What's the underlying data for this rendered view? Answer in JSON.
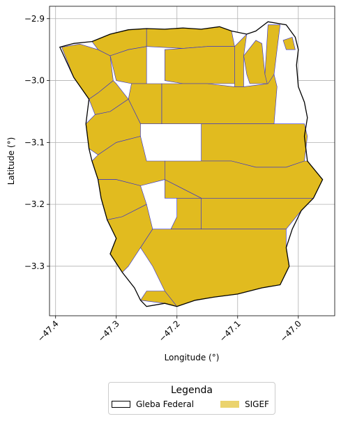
{
  "chart_data": {
    "type": "map",
    "xlabel": "Longitude (°)",
    "ylabel": "Latitude (°)",
    "xlim": [
      -47.41,
      -46.94
    ],
    "ylim": [
      -3.38,
      -2.88
    ],
    "xticks": [
      -47.4,
      -47.3,
      -47.2,
      -47.1,
      -47.0
    ],
    "xtick_labels": [
      "−47.4",
      "−47.3",
      "−47.2",
      "−47.1",
      "−47.0"
    ],
    "yticks": [
      -2.9,
      -3.0,
      -3.1,
      -3.2,
      -3.3
    ],
    "ytick_labels": [
      "−2.9",
      "−3.0",
      "−3.1",
      "−3.2",
      "−3.3"
    ],
    "grid": true,
    "colors": {
      "gleba_edge": "#000000",
      "gleba_fill": "#ffffff",
      "sigef_fill": "#e1bb1f",
      "sigef_edge": "#2b2bd6",
      "grid": "#b0b0b0"
    },
    "gleba_boundary": [
      [
        -47.393,
        -2.946
      ],
      [
        -47.37,
        -2.94
      ],
      [
        -47.34,
        -2.937
      ],
      [
        -47.31,
        -2.925
      ],
      [
        -47.28,
        -2.918
      ],
      [
        -47.25,
        -2.916
      ],
      [
        -47.22,
        -2.917
      ],
      [
        -47.19,
        -2.915
      ],
      [
        -47.16,
        -2.917
      ],
      [
        -47.13,
        -2.913
      ],
      [
        -47.11,
        -2.92
      ],
      [
        -47.085,
        -2.925
      ],
      [
        -47.07,
        -2.92
      ],
      [
        -47.05,
        -2.905
      ],
      [
        -47.02,
        -2.91
      ],
      [
        -47.005,
        -2.93
      ],
      [
        -47.0,
        -2.95
      ],
      [
        -47.003,
        -2.975
      ],
      [
        -47.0,
        -3.01
      ],
      [
        -46.99,
        -3.035
      ],
      [
        -46.985,
        -3.06
      ],
      [
        -46.99,
        -3.09
      ],
      [
        -46.985,
        -3.13
      ],
      [
        -46.96,
        -3.16
      ],
      [
        -46.975,
        -3.19
      ],
      [
        -46.995,
        -3.21
      ],
      [
        -47.01,
        -3.24
      ],
      [
        -47.02,
        -3.27
      ],
      [
        -47.015,
        -3.3
      ],
      [
        -47.03,
        -3.33
      ],
      [
        -47.06,
        -3.335
      ],
      [
        -47.1,
        -3.345
      ],
      [
        -47.14,
        -3.35
      ],
      [
        -47.17,
        -3.355
      ],
      [
        -47.2,
        -3.365
      ],
      [
        -47.22,
        -3.36
      ],
      [
        -47.25,
        -3.365
      ],
      [
        -47.26,
        -3.355
      ],
      [
        -47.27,
        -3.335
      ],
      [
        -47.29,
        -3.31
      ],
      [
        -47.31,
        -3.28
      ],
      [
        -47.3,
        -3.255
      ],
      [
        -47.315,
        -3.225
      ],
      [
        -47.325,
        -3.19
      ],
      [
        -47.33,
        -3.16
      ],
      [
        -47.34,
        -3.13
      ],
      [
        -47.345,
        -3.11
      ],
      [
        -47.35,
        -3.07
      ],
      [
        -47.345,
        -3.03
      ],
      [
        -47.37,
        -2.995
      ],
      [
        -47.393,
        -2.946
      ]
    ],
    "sigef_parcels": [
      [
        [
          -47.39,
          -2.946
        ],
        [
          -47.36,
          -2.941
        ],
        [
          -47.33,
          -2.95
        ],
        [
          -47.31,
          -2.96
        ],
        [
          -47.305,
          -3.0
        ],
        [
          -47.33,
          -3.02
        ],
        [
          -47.345,
          -3.03
        ],
        [
          -47.37,
          -2.995
        ]
      ],
      [
        [
          -47.34,
          -2.937
        ],
        [
          -47.31,
          -2.925
        ],
        [
          -47.28,
          -2.918
        ],
        [
          -47.25,
          -2.916
        ],
        [
          -47.25,
          -2.945
        ],
        [
          -47.28,
          -2.95
        ],
        [
          -47.31,
          -2.96
        ],
        [
          -47.33,
          -2.95
        ]
      ],
      [
        [
          -47.25,
          -2.916
        ],
        [
          -47.22,
          -2.917
        ],
        [
          -47.19,
          -2.915
        ],
        [
          -47.16,
          -2.917
        ],
        [
          -47.13,
          -2.913
        ],
        [
          -47.11,
          -2.92
        ],
        [
          -47.105,
          -2.945
        ],
        [
          -47.15,
          -2.945
        ],
        [
          -47.19,
          -2.948
        ],
        [
          -47.25,
          -2.945
        ]
      ],
      [
        [
          -47.31,
          -2.96
        ],
        [
          -47.28,
          -2.95
        ],
        [
          -47.25,
          -2.945
        ],
        [
          -47.25,
          -3.005
        ],
        [
          -47.275,
          -3.005
        ],
        [
          -47.3,
          -3.0
        ]
      ],
      [
        [
          -47.19,
          -2.948
        ],
        [
          -47.15,
          -2.945
        ],
        [
          -47.105,
          -2.945
        ],
        [
          -47.105,
          -3.005
        ],
        [
          -47.15,
          -3.005
        ],
        [
          -47.19,
          -3.005
        ],
        [
          -47.22,
          -3.0
        ],
        [
          -47.22,
          -2.95
        ]
      ],
      [
        [
          -47.105,
          -2.945
        ],
        [
          -47.085,
          -2.925
        ],
        [
          -47.09,
          -2.96
        ],
        [
          -47.09,
          -3.01
        ],
        [
          -47.105,
          -3.01
        ]
      ],
      [
        [
          -47.07,
          -2.935
        ],
        [
          -47.06,
          -2.94
        ],
        [
          -47.055,
          -2.99
        ],
        [
          -47.05,
          -3.005
        ],
        [
          -47.08,
          -3.005
        ],
        [
          -47.085,
          -2.99
        ],
        [
          -47.09,
          -2.96
        ]
      ],
      [
        [
          -47.055,
          -2.99
        ],
        [
          -47.05,
          -2.91
        ],
        [
          -47.03,
          -2.91
        ],
        [
          -47.035,
          -2.95
        ],
        [
          -47.04,
          -2.99
        ],
        [
          -47.05,
          -3.01
        ]
      ],
      [
        [
          -47.025,
          -2.935
        ],
        [
          -47.01,
          -2.93
        ],
        [
          -47.005,
          -2.95
        ],
        [
          -47.02,
          -2.95
        ]
      ],
      [
        [
          -47.345,
          -3.03
        ],
        [
          -47.33,
          -3.02
        ],
        [
          -47.305,
          -3.0
        ],
        [
          -47.3,
          -3.005
        ],
        [
          -47.28,
          -3.03
        ],
        [
          -47.31,
          -3.05
        ],
        [
          -47.335,
          -3.055
        ]
      ],
      [
        [
          -47.28,
          -3.03
        ],
        [
          -47.275,
          -3.005
        ],
        [
          -47.25,
          -3.005
        ],
        [
          -47.225,
          -3.005
        ],
        [
          -47.225,
          -3.07
        ],
        [
          -47.26,
          -3.07
        ],
        [
          -47.27,
          -3.05
        ]
      ],
      [
        [
          -47.225,
          -3.005
        ],
        [
          -47.19,
          -3.005
        ],
        [
          -47.15,
          -3.005
        ],
        [
          -47.105,
          -3.01
        ],
        [
          -47.09,
          -3.01
        ],
        [
          -47.05,
          -3.005
        ],
        [
          -47.04,
          -2.99
        ],
        [
          -47.035,
          -3.01
        ],
        [
          -47.04,
          -3.07
        ],
        [
          -47.1,
          -3.07
        ],
        [
          -47.16,
          -3.07
        ],
        [
          -47.225,
          -3.07
        ]
      ],
      [
        [
          -47.345,
          -3.11
        ],
        [
          -47.35,
          -3.07
        ],
        [
          -47.335,
          -3.055
        ],
        [
          -47.31,
          -3.05
        ],
        [
          -47.28,
          -3.03
        ],
        [
          -47.27,
          -3.05
        ],
        [
          -47.26,
          -3.07
        ],
        [
          -47.26,
          -3.09
        ],
        [
          -47.3,
          -3.1
        ],
        [
          -47.33,
          -3.12
        ]
      ],
      [
        [
          -47.16,
          -3.07
        ],
        [
          -47.1,
          -3.07
        ],
        [
          -47.04,
          -3.07
        ],
        [
          -46.99,
          -3.07
        ],
        [
          -46.985,
          -3.09
        ],
        [
          -46.99,
          -3.13
        ],
        [
          -47.02,
          -3.14
        ],
        [
          -47.07,
          -3.14
        ],
        [
          -47.11,
          -3.13
        ],
        [
          -47.16,
          -3.13
        ]
      ],
      [
        [
          -47.34,
          -3.13
        ],
        [
          -47.33,
          -3.12
        ],
        [
          -47.3,
          -3.1
        ],
        [
          -47.26,
          -3.09
        ],
        [
          -47.25,
          -3.13
        ],
        [
          -47.22,
          -3.13
        ],
        [
          -47.22,
          -3.16
        ],
        [
          -47.26,
          -3.17
        ],
        [
          -47.3,
          -3.16
        ],
        [
          -47.33,
          -3.16
        ]
      ],
      [
        [
          -47.22,
          -3.13
        ],
        [
          -47.16,
          -3.13
        ],
        [
          -47.11,
          -3.13
        ],
        [
          -47.07,
          -3.14
        ],
        [
          -47.02,
          -3.14
        ],
        [
          -46.99,
          -3.13
        ],
        [
          -46.985,
          -3.13
        ],
        [
          -46.96,
          -3.16
        ],
        [
          -46.975,
          -3.19
        ],
        [
          -47.02,
          -3.19
        ],
        [
          -47.07,
          -3.19
        ],
        [
          -47.11,
          -3.19
        ],
        [
          -47.16,
          -3.19
        ],
        [
          -47.22,
          -3.16
        ]
      ],
      [
        [
          -47.325,
          -3.19
        ],
        [
          -47.33,
          -3.16
        ],
        [
          -47.3,
          -3.16
        ],
        [
          -47.26,
          -3.17
        ],
        [
          -47.25,
          -3.2
        ],
        [
          -47.29,
          -3.22
        ],
        [
          -47.315,
          -3.225
        ]
      ],
      [
        [
          -47.22,
          -3.16
        ],
        [
          -47.16,
          -3.19
        ],
        [
          -47.16,
          -3.24
        ],
        [
          -47.11,
          -3.24
        ],
        [
          -47.07,
          -3.24
        ],
        [
          -47.02,
          -3.24
        ],
        [
          -46.995,
          -3.21
        ],
        [
          -46.975,
          -3.19
        ],
        [
          -47.02,
          -3.19
        ],
        [
          -47.07,
          -3.19
        ],
        [
          -47.11,
          -3.19
        ],
        [
          -47.16,
          -3.19
        ],
        [
          -47.22,
          -3.19
        ]
      ],
      [
        [
          -47.315,
          -3.225
        ],
        [
          -47.29,
          -3.22
        ],
        [
          -47.25,
          -3.2
        ],
        [
          -47.24,
          -3.24
        ],
        [
          -47.26,
          -3.27
        ],
        [
          -47.28,
          -3.3
        ],
        [
          -47.29,
          -3.31
        ],
        [
          -47.31,
          -3.28
        ],
        [
          -47.3,
          -3.255
        ]
      ],
      [
        [
          -47.2,
          -3.19
        ],
        [
          -47.16,
          -3.19
        ],
        [
          -47.16,
          -3.24
        ],
        [
          -47.21,
          -3.24
        ],
        [
          -47.2,
          -3.22
        ]
      ],
      [
        [
          -47.26,
          -3.27
        ],
        [
          -47.24,
          -3.24
        ],
        [
          -47.22,
          -3.24
        ],
        [
          -47.21,
          -3.24
        ],
        [
          -47.16,
          -3.24
        ],
        [
          -47.11,
          -3.24
        ],
        [
          -47.07,
          -3.24
        ],
        [
          -47.02,
          -3.24
        ],
        [
          -47.02,
          -3.27
        ],
        [
          -47.015,
          -3.3
        ],
        [
          -47.03,
          -3.33
        ],
        [
          -47.06,
          -3.335
        ],
        [
          -47.1,
          -3.345
        ],
        [
          -47.14,
          -3.35
        ],
        [
          -47.17,
          -3.355
        ],
        [
          -47.2,
          -3.365
        ],
        [
          -47.22,
          -3.34
        ],
        [
          -47.24,
          -3.3
        ]
      ],
      [
        [
          -47.26,
          -3.355
        ],
        [
          -47.22,
          -3.36
        ],
        [
          -47.2,
          -3.365
        ],
        [
          -47.22,
          -3.34
        ],
        [
          -47.25,
          -3.34
        ]
      ]
    ],
    "legend": {
      "title": "Legenda",
      "placement": "bottom-center",
      "entries": [
        {
          "label": "Gleba Federal",
          "style": "outline"
        },
        {
          "label": "SIGEF",
          "style": "fill"
        }
      ]
    }
  }
}
